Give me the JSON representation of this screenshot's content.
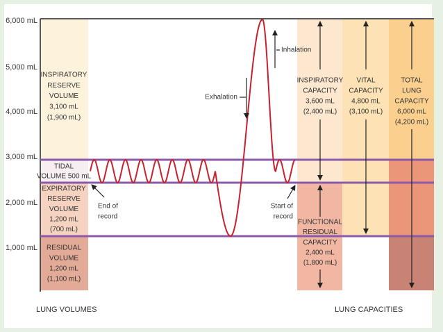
{
  "y_axis": [
    "6,000 mL",
    "5,000 mL",
    "4,000 mL",
    "3,000 mL",
    "2,000 mL",
    "1,000 mL"
  ],
  "volumes": {
    "irv": [
      "INSPIRATORY",
      "RESERVE",
      "VOLUME",
      "3,100 mL",
      "(1,900 mL)"
    ],
    "tv": [
      "TIDAL",
      "VOLUME 500 mL"
    ],
    "erv": [
      "EXPIRATORY",
      "RESERVE",
      "VOLUME",
      "1,200 mL",
      "(700 mL)"
    ],
    "rv": [
      "RESIDUAL",
      "VOLUME",
      "1,200 mL",
      "(1,100 mL)"
    ]
  },
  "capacities": {
    "ic": [
      "INSPIRATORY",
      "CAPACITY",
      "3,600 mL",
      "(2,400 mL)"
    ],
    "vc": [
      "VITAL",
      "CAPACITY",
      "4,800 mL",
      "(3,100 mL)"
    ],
    "tlc": [
      "TOTAL",
      "LUNG",
      "CAPACITY",
      "6,000 mL",
      "(4,200 mL)"
    ],
    "frc": [
      "FUNCTIONAL",
      "RESIDUAL",
      "CAPACITY",
      "2,400 mL",
      "(1,800 mL)"
    ]
  },
  "annotations": {
    "inhalation": "Inhalation",
    "exhalation": "Exhalation",
    "end_of_record": [
      "End of",
      "record"
    ],
    "start_of_record": [
      "Start of",
      "record"
    ]
  },
  "footer": {
    "left": "LUNG VOLUMES",
    "right": "LUNG CAPACITIES"
  }
}
